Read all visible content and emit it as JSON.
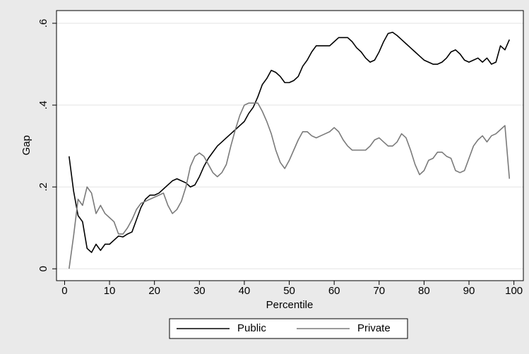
{
  "chart_data": {
    "type": "line",
    "x_label": "Percentile",
    "y_label": "Gap",
    "x": [
      1,
      2,
      3,
      4,
      5,
      6,
      7,
      8,
      9,
      10,
      11,
      12,
      13,
      14,
      15,
      16,
      17,
      18,
      19,
      20,
      21,
      22,
      23,
      24,
      25,
      26,
      27,
      28,
      29,
      30,
      31,
      32,
      33,
      34,
      35,
      36,
      37,
      38,
      39,
      40,
      41,
      42,
      43,
      44,
      45,
      46,
      47,
      48,
      49,
      50,
      51,
      52,
      53,
      54,
      55,
      56,
      57,
      58,
      59,
      60,
      61,
      62,
      63,
      64,
      65,
      66,
      67,
      68,
      69,
      70,
      71,
      72,
      73,
      74,
      75,
      76,
      77,
      78,
      79,
      80,
      81,
      82,
      83,
      84,
      85,
      86,
      87,
      88,
      89,
      90,
      91,
      92,
      93,
      94,
      95,
      96,
      97,
      98,
      99
    ],
    "series": [
      {
        "name": "Public",
        "color": "#000000",
        "values": [
          0.275,
          0.19,
          0.13,
          0.115,
          0.05,
          0.04,
          0.06,
          0.045,
          0.06,
          0.06,
          0.07,
          0.08,
          0.078,
          0.085,
          0.09,
          0.12,
          0.15,
          0.17,
          0.18,
          0.18,
          0.185,
          0.195,
          0.205,
          0.215,
          0.22,
          0.215,
          0.21,
          0.2,
          0.205,
          0.225,
          0.25,
          0.27,
          0.285,
          0.3,
          0.31,
          0.32,
          0.33,
          0.34,
          0.35,
          0.36,
          0.38,
          0.395,
          0.42,
          0.45,
          0.465,
          0.485,
          0.48,
          0.47,
          0.455,
          0.455,
          0.46,
          0.47,
          0.495,
          0.51,
          0.53,
          0.545,
          0.545,
          0.545,
          0.545,
          0.555,
          0.565,
          0.565,
          0.565,
          0.555,
          0.54,
          0.53,
          0.515,
          0.505,
          0.51,
          0.53,
          0.555,
          0.575,
          0.578,
          0.57,
          0.56,
          0.55,
          0.54,
          0.53,
          0.52,
          0.51,
          0.505,
          0.5,
          0.5,
          0.505,
          0.515,
          0.53,
          0.535,
          0.525,
          0.51,
          0.505,
          0.51,
          0.515,
          0.505,
          0.515,
          0.5,
          0.505,
          0.545,
          0.535,
          0.56
        ]
      },
      {
        "name": "Private",
        "color": "#7a7a7a",
        "values": [
          0,
          0.08,
          0.17,
          0.155,
          0.2,
          0.185,
          0.135,
          0.155,
          0.135,
          0.125,
          0.115,
          0.085,
          0.085,
          0.1,
          0.12,
          0.145,
          0.16,
          0.165,
          0.17,
          0.175,
          0.18,
          0.185,
          0.155,
          0.135,
          0.145,
          0.165,
          0.2,
          0.25,
          0.275,
          0.283,
          0.275,
          0.255,
          0.235,
          0.225,
          0.235,
          0.255,
          0.3,
          0.34,
          0.375,
          0.4,
          0.405,
          0.405,
          0.405,
          0.385,
          0.36,
          0.33,
          0.29,
          0.26,
          0.245,
          0.265,
          0.29,
          0.315,
          0.335,
          0.335,
          0.325,
          0.32,
          0.325,
          0.33,
          0.335,
          0.345,
          0.335,
          0.315,
          0.3,
          0.29,
          0.29,
          0.29,
          0.29,
          0.3,
          0.315,
          0.32,
          0.31,
          0.3,
          0.3,
          0.31,
          0.33,
          0.32,
          0.29,
          0.255,
          0.23,
          0.24,
          0.265,
          0.27,
          0.285,
          0.285,
          0.275,
          0.27,
          0.24,
          0.235,
          0.24,
          0.27,
          0.3,
          0.315,
          0.325,
          0.31,
          0.325,
          0.33,
          0.34,
          0.35,
          0.22
        ]
      }
    ],
    "xlim": [
      -1.8,
      102.1
    ],
    "xticks": [
      0,
      10,
      20,
      30,
      40,
      50,
      60,
      70,
      80,
      90,
      100
    ],
    "ylim": [
      -0.029,
      0.631
    ],
    "yticks": [
      {
        "value": 0,
        "label": "0"
      },
      {
        "value": 0.2,
        "label": ".2"
      },
      {
        "value": 0.4,
        "label": ".4"
      },
      {
        "value": 0.6,
        "label": ".6"
      }
    ],
    "grid": true,
    "legend": "bottom"
  }
}
